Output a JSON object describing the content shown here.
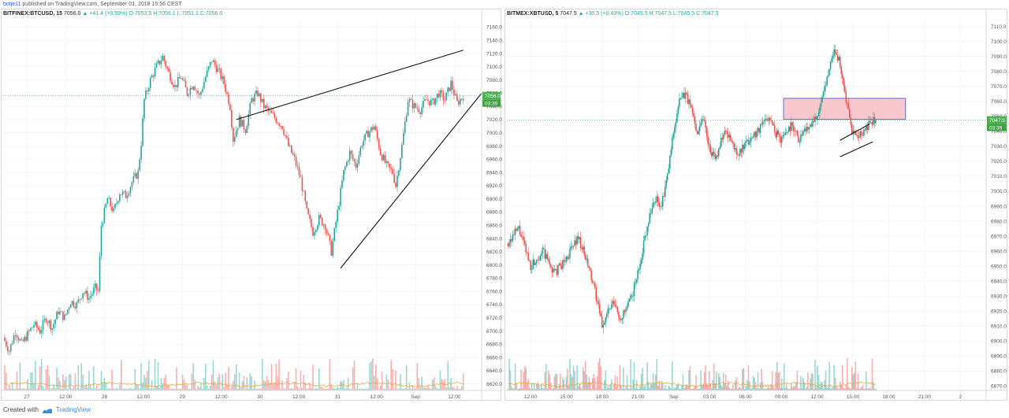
{
  "header": {
    "author": "botje11",
    "published_text": "published on TradingView.com, September 01, 2018 15:56 CEST"
  },
  "footer": {
    "created_with": "Created with",
    "brand": "TradingView"
  },
  "colors": {
    "up": "#26a69a",
    "down": "#ef5350",
    "price_tag": "#4caf50",
    "zone_fill": "#f8c8cc",
    "zone_border": "#5b6bd8",
    "volume_ma": "#f0a030",
    "grid": "#eef0f3"
  },
  "chart_data": [
    {
      "type": "candlestick",
      "legend": {
        "symbol": "BITFINEX:BTCUSD, 15",
        "last": "7056.0",
        "change": "+41.4 (+0.59%)",
        "open": "O:7053.5",
        "high": "H:7056.1",
        "low": "L:7051.1",
        "close": "C:7056.0"
      },
      "y_ticks": [
        "7160.0",
        "7140.0",
        "7120.0",
        "7100.0",
        "7080.0",
        "7060.0",
        "7040.0",
        "7020.0",
        "7000.0",
        "6980.0",
        "6960.0",
        "6940.0",
        "6920.0",
        "6900.0",
        "6880.0",
        "6860.0",
        "6840.0",
        "6820.0",
        "6800.0",
        "6780.0",
        "6760.0",
        "6740.0",
        "6720.0",
        "6700.0",
        "6680.0",
        "6660.0",
        "6640.0",
        "6620.0"
      ],
      "x_ticks": [
        "27",
        "12:00",
        "28",
        "12:00",
        "29",
        "12:00",
        "30",
        "12:00",
        "31",
        "12:00",
        "Sep",
        "12:00"
      ],
      "ylim": [
        6610,
        7170
      ],
      "last_price_label": "7056.0",
      "countdown_label": "03:39",
      "price_path": [
        [
          0,
          6690
        ],
        [
          2,
          6670
        ],
        [
          4,
          6700
        ],
        [
          6,
          6680
        ],
        [
          8,
          6695
        ],
        [
          10,
          6710
        ],
        [
          12,
          6700
        ],
        [
          14,
          6720
        ],
        [
          16,
          6705
        ],
        [
          18,
          6730
        ],
        [
          20,
          6720
        ],
        [
          22,
          6745
        ],
        [
          24,
          6740
        ],
        [
          26,
          6760
        ],
        [
          28,
          6750
        ],
        [
          30,
          6765
        ],
        [
          31,
          6760
        ],
        [
          32,
          6860
        ],
        [
          34,
          6900
        ],
        [
          36,
          6880
        ],
        [
          38,
          6910
        ],
        [
          40,
          6905
        ],
        [
          42,
          6925
        ],
        [
          44,
          6940
        ],
        [
          45,
          6985
        ],
        [
          46,
          7050
        ],
        [
          48,
          7080
        ],
        [
          50,
          7100
        ],
        [
          52,
          7115
        ],
        [
          54,
          7090
        ],
        [
          56,
          7070
        ],
        [
          58,
          7085
        ],
        [
          60,
          7060
        ],
        [
          62,
          7075
        ],
        [
          64,
          7055
        ],
        [
          66,
          7085
        ],
        [
          68,
          7110
        ],
        [
          70,
          7095
        ],
        [
          72,
          7075
        ],
        [
          74,
          7040
        ],
        [
          75,
          6990
        ],
        [
          77,
          7020
        ],
        [
          79,
          7005
        ],
        [
          81,
          7050
        ],
        [
          83,
          7060
        ],
        [
          85,
          7040
        ],
        [
          87,
          7030
        ],
        [
          89,
          7020
        ],
        [
          91,
          7010
        ],
        [
          93,
          6980
        ],
        [
          95,
          6960
        ],
        [
          97,
          6930
        ],
        [
          99,
          6880
        ],
        [
          101,
          6850
        ],
        [
          103,
          6870
        ],
        [
          105,
          6860
        ],
        [
          107,
          6820
        ],
        [
          109,
          6880
        ],
        [
          111,
          6940
        ],
        [
          113,
          6970
        ],
        [
          115,
          6950
        ],
        [
          117,
          6985
        ],
        [
          119,
          7000
        ],
        [
          121,
          7010
        ],
        [
          123,
          6970
        ],
        [
          125,
          6950
        ],
        [
          127,
          6940
        ],
        [
          128,
          6920
        ],
        [
          130,
          6980
        ],
        [
          132,
          7050
        ],
        [
          134,
          7040
        ],
        [
          136,
          7035
        ],
        [
          138,
          7050
        ],
        [
          140,
          7045
        ],
        [
          142,
          7060
        ],
        [
          144,
          7050
        ],
        [
          146,
          7075
        ],
        [
          148,
          7045
        ],
        [
          150,
          7056
        ]
      ],
      "trendlines": [
        {
          "from": [
            76,
            7020
          ],
          "to": [
            150,
            7125
          ]
        },
        {
          "from": [
            110,
            6795
          ],
          "to": [
            156,
            7060
          ]
        }
      ]
    },
    {
      "type": "candlestick",
      "legend": {
        "symbol": "BITMEX:XBTUSD, 5",
        "last": "7047.5",
        "change": "+30.5 (+0.43%)",
        "open": "O:7045.5",
        "high": "H:7047.5",
        "low": "L:7045.5",
        "close": "C:7047.5"
      },
      "y_ticks": [
        "7110.0",
        "7100.0",
        "7090.0",
        "7080.0",
        "7070.0",
        "7060.0",
        "7050.0",
        "7040.0",
        "7030.0",
        "7020.0",
        "7010.0",
        "7000.0",
        "6990.0",
        "6980.0",
        "6970.0",
        "6960.0",
        "6950.0",
        "6940.0",
        "6930.0",
        "6920.0",
        "6910.0",
        "6900.0",
        "6890.0",
        "6880.0",
        "6870.0"
      ],
      "x_ticks": [
        "12:00",
        "15:00",
        "18:00",
        "21:00",
        "Sep",
        "03:00",
        "06:00",
        "09:00",
        "12:00",
        "15:00",
        "18:00",
        "21:00",
        "2"
      ],
      "ylim": [
        6867,
        7114
      ],
      "last_price_label": "7047.5",
      "countdown_label": "03:39",
      "price_path": [
        [
          0,
          6965
        ],
        [
          4,
          6975
        ],
        [
          8,
          6950
        ],
        [
          12,
          6960
        ],
        [
          16,
          6945
        ],
        [
          20,
          6955
        ],
        [
          24,
          6970
        ],
        [
          28,
          6945
        ],
        [
          30,
          6930
        ],
        [
          32,
          6910
        ],
        [
          34,
          6920
        ],
        [
          36,
          6925
        ],
        [
          38,
          6915
        ],
        [
          40,
          6920
        ],
        [
          42,
          6930
        ],
        [
          44,
          6945
        ],
        [
          46,
          6965
        ],
        [
          48,
          6985
        ],
        [
          50,
          6995
        ],
        [
          52,
          6990
        ],
        [
          54,
          7010
        ],
        [
          56,
          7040
        ],
        [
          58,
          7060
        ],
        [
          60,
          7065
        ],
        [
          62,
          7055
        ],
        [
          64,
          7040
        ],
        [
          66,
          7050
        ],
        [
          68,
          7030
        ],
        [
          70,
          7020
        ],
        [
          72,
          7035
        ],
        [
          74,
          7040
        ],
        [
          76,
          7030
        ],
        [
          78,
          7025
        ],
        [
          80,
          7030
        ],
        [
          82,
          7035
        ],
        [
          84,
          7040
        ],
        [
          86,
          7045
        ],
        [
          88,
          7050
        ],
        [
          90,
          7040
        ],
        [
          92,
          7035
        ],
        [
          94,
          7040
        ],
        [
          96,
          7045
        ],
        [
          98,
          7035
        ],
        [
          100,
          7040
        ],
        [
          102,
          7045
        ],
        [
          104,
          7050
        ],
        [
          106,
          7060
        ],
        [
          108,
          7080
        ],
        [
          110,
          7095
        ],
        [
          112,
          7085
        ],
        [
          114,
          7060
        ],
        [
          116,
          7040
        ],
        [
          118,
          7035
        ],
        [
          120,
          7040
        ],
        [
          122,
          7045
        ],
        [
          124,
          7047.5
        ]
      ],
      "trendlines": [
        {
          "from": [
            112,
            7034
          ],
          "to": [
            122,
            7045
          ]
        },
        {
          "from": [
            112,
            7023
          ],
          "to": [
            123,
            7033
          ]
        }
      ],
      "zone": {
        "x0": 93,
        "x1": 134,
        "y0": 7062,
        "y1": 7048
      }
    }
  ]
}
